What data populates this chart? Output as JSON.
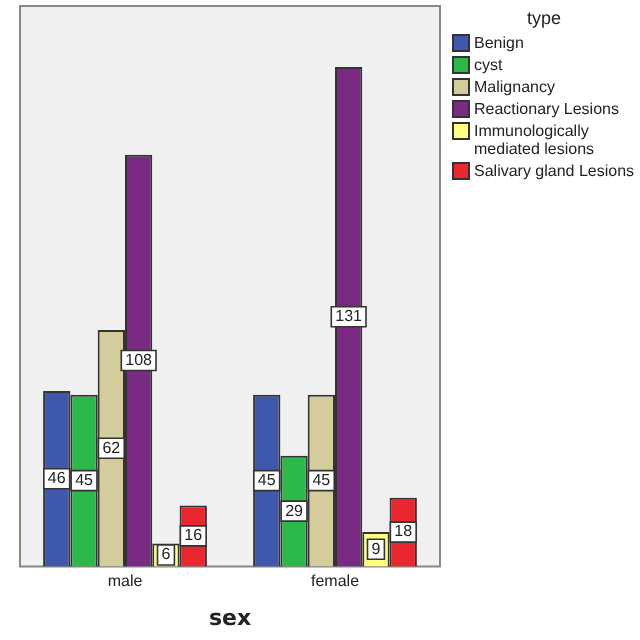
{
  "chart_data": {
    "type": "bar",
    "xlabel": "sex",
    "legend_title": "type",
    "categories": [
      "male",
      "female"
    ],
    "series": [
      {
        "name": "Benign",
        "color": "#3e58ac",
        "values": [
          46,
          45
        ]
      },
      {
        "name": "cyst",
        "color": "#2db84a",
        "values": [
          45,
          29
        ]
      },
      {
        "name": "Malignancy",
        "color": "#d4cc9a",
        "values": [
          62,
          45
        ]
      },
      {
        "name": "Reactionary Lesions",
        "color": "#7a2a82",
        "values": [
          108,
          131
        ]
      },
      {
        "name": "Immunologically mediated lesions",
        "color": "#ffff80",
        "values": [
          6,
          9
        ]
      },
      {
        "name": "Salivary gland Lesions",
        "color": "#e8282e",
        "values": [
          16,
          18
        ]
      }
    ],
    "ylim": [
      0,
      147
    ],
    "data_labels": true,
    "grid": false,
    "legend": "right",
    "tick_labels": "x"
  }
}
